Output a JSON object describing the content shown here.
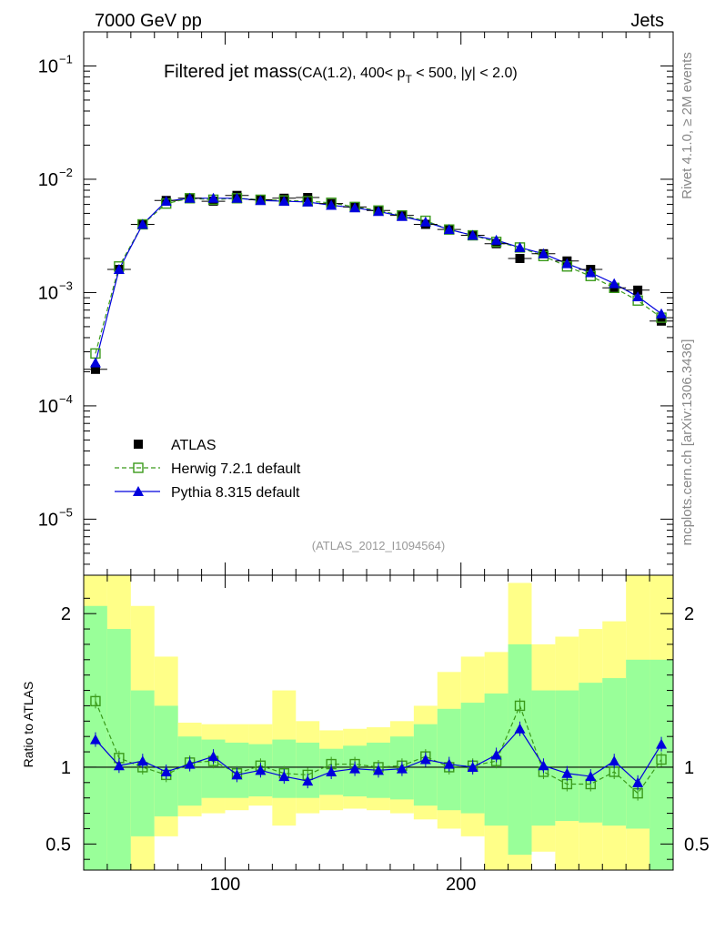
{
  "header": {
    "energy_label": "7000 GeV pp",
    "category_label": "Jets",
    "side_label_rivet": "Rivet 4.1.0, ≥ 2M events",
    "side_label_source": "mcplots.cern.ch [arXiv:1306.3436]",
    "analysis_id": "(ATLAS_2012_I1094564)"
  },
  "title": {
    "main": "Filtered jet mass",
    "sub_prefix": "(CA(1.2), 400< p",
    "sub_subscript": "T",
    "sub_suffix": " < 500, |y| < 2.0)"
  },
  "colors": {
    "atlas": "#000000",
    "herwig": "#3a9a1a",
    "pythia": "#0000dd",
    "band_inner": "#99ff99",
    "band_outer": "#ffff88"
  },
  "chart_data": [
    {
      "type": "scatter",
      "name": "main",
      "yscale": "log",
      "xlim": [
        40,
        290
      ],
      "ylim": [
        3.2e-06,
        0.2
      ],
      "y_ticks_major": [
        {
          "value": 0.1,
          "label": "10",
          "exp": "−1"
        },
        {
          "value": 0.01,
          "label": "10",
          "exp": "−2"
        },
        {
          "value": 0.001,
          "label": "10",
          "exp": "−3"
        },
        {
          "value": 0.0001,
          "label": "10",
          "exp": "−4"
        },
        {
          "value": 1e-05,
          "label": "10",
          "exp": "−5"
        }
      ],
      "x": [
        45,
        55,
        65,
        75,
        85,
        95,
        105,
        115,
        125,
        135,
        145,
        155,
        165,
        175,
        185,
        195,
        205,
        215,
        225,
        235,
        245,
        255,
        265,
        275,
        285
      ],
      "series": [
        {
          "name": "ATLAS",
          "marker": "square-filled",
          "values": [
            0.00021,
            0.0016,
            0.004,
            0.0065,
            0.0068,
            0.0064,
            0.0072,
            0.0066,
            0.0068,
            0.0069,
            0.0061,
            0.0057,
            0.0053,
            0.0048,
            0.004,
            0.0036,
            0.0032,
            0.0027,
            0.002,
            0.0022,
            0.0019,
            0.0016,
            0.0011,
            0.00105,
            0.00056
          ]
        },
        {
          "name": "Herwig 7.2.1 default",
          "marker": "square-open",
          "line": "dashed",
          "values": [
            0.00029,
            0.0017,
            0.004,
            0.0061,
            0.0068,
            0.0066,
            0.0068,
            0.0066,
            0.0065,
            0.0064,
            0.0062,
            0.0057,
            0.0053,
            0.0048,
            0.0043,
            0.0036,
            0.0032,
            0.0028,
            0.0025,
            0.0021,
            0.0017,
            0.0014,
            0.0011,
            0.00085,
            0.0006
          ]
        },
        {
          "name": "Pythia 8.315 default",
          "marker": "triangle-filled",
          "line": "solid",
          "values": [
            0.00024,
            0.0016,
            0.004,
            0.0064,
            0.0068,
            0.0068,
            0.0068,
            0.0065,
            0.0064,
            0.0063,
            0.0059,
            0.0056,
            0.0052,
            0.0047,
            0.0042,
            0.0036,
            0.0032,
            0.0029,
            0.0025,
            0.0022,
            0.0018,
            0.0015,
            0.0012,
            0.00092,
            0.00065
          ]
        }
      ],
      "legend": [
        "ATLAS",
        "Herwig 7.2.1 default",
        "Pythia 8.315 default"
      ],
      "legend_position": "lower-left"
    },
    {
      "type": "scatter",
      "name": "ratio",
      "ylabel": "Ratio to ATLAS",
      "xlim": [
        40,
        290
      ],
      "ylim": [
        0.33,
        2.25
      ],
      "y_ticks": [
        {
          "value": 2,
          "label": "2"
        },
        {
          "value": 1,
          "label": "1"
        },
        {
          "value": 0.5,
          "label": "0.5"
        }
      ],
      "x_ticks": [
        {
          "value": 100,
          "label": "100"
        },
        {
          "value": 200,
          "label": "200"
        }
      ],
      "x": [
        45,
        55,
        65,
        75,
        85,
        95,
        105,
        115,
        125,
        135,
        145,
        155,
        165,
        175,
        185,
        195,
        205,
        215,
        225,
        235,
        245,
        255,
        265,
        275,
        285
      ],
      "band_inner_low": [
        0.3,
        0.3,
        0.55,
        0.68,
        0.75,
        0.8,
        0.8,
        0.81,
        0.8,
        0.8,
        0.82,
        0.81,
        0.8,
        0.79,
        0.75,
        0.72,
        0.7,
        0.62,
        0.43,
        0.62,
        0.65,
        0.64,
        0.62,
        0.6,
        0.3
      ],
      "band_inner_high": [
        2.05,
        1.9,
        1.5,
        1.4,
        1.2,
        1.18,
        1.16,
        1.15,
        1.18,
        1.16,
        1.12,
        1.14,
        1.16,
        1.2,
        1.28,
        1.38,
        1.42,
        1.48,
        1.8,
        1.5,
        1.5,
        1.55,
        1.58,
        1.7,
        1.7
      ],
      "band_outer_low": [
        0.3,
        0.3,
        0.3,
        0.55,
        0.68,
        0.7,
        0.72,
        0.75,
        0.62,
        0.7,
        0.72,
        0.73,
        0.72,
        0.7,
        0.66,
        0.6,
        0.55,
        0.3,
        0.3,
        0.45,
        0.3,
        0.3,
        0.3,
        0.3,
        0.3
      ],
      "band_outer_high": [
        2.3,
        2.3,
        2.05,
        1.72,
        1.29,
        1.28,
        1.28,
        1.28,
        1.5,
        1.3,
        1.24,
        1.25,
        1.26,
        1.3,
        1.4,
        1.62,
        1.72,
        1.75,
        2.2,
        1.8,
        1.85,
        1.9,
        1.95,
        2.3,
        2.3
      ],
      "series": [
        {
          "name": "Herwig 7.2.1 default",
          "marker": "square-open",
          "line": "dashed",
          "values": [
            1.43,
            1.06,
            1.0,
            0.95,
            1.03,
            1.04,
            0.96,
            1.01,
            0.96,
            0.95,
            1.02,
            1.02,
            1.0,
            1.01,
            1.07,
            1.0,
            1.01,
            1.04,
            1.4,
            0.97,
            0.89,
            0.89,
            0.97,
            0.83,
            1.05
          ]
        },
        {
          "name": "Pythia 8.315 default",
          "marker": "triangle-filled",
          "line": "solid",
          "values": [
            1.18,
            1.01,
            1.04,
            0.97,
            1.02,
            1.07,
            0.95,
            0.98,
            0.94,
            0.91,
            0.97,
            0.99,
            0.98,
            0.99,
            1.05,
            1.02,
            1.0,
            1.08,
            1.25,
            1.01,
            0.96,
            0.94,
            1.04,
            0.9,
            1.15
          ]
        }
      ]
    }
  ]
}
